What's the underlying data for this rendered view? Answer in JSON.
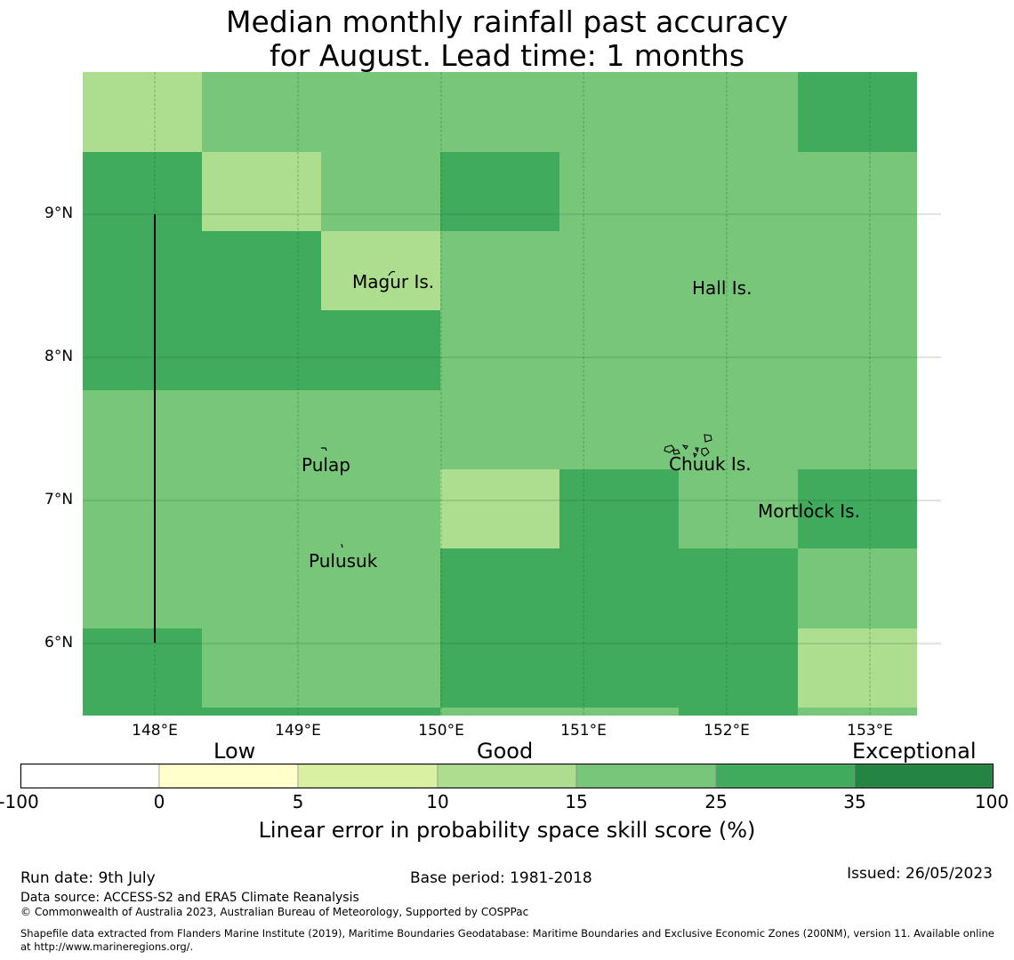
{
  "title": {
    "line1": "Median monthly rainfall past accuracy",
    "line2": "for August. Lead time: 1 months"
  },
  "map": {
    "lat_ticks": [
      "9°N",
      "8°N",
      "7°N",
      "6°N"
    ],
    "lon_ticks": [
      "148°E",
      "149°E",
      "150°E",
      "151°E",
      "152°E",
      "153°E"
    ],
    "islands": [
      "Magur Is.",
      "Hall Is.",
      "Pulap",
      "Chuuk Is.",
      "Mortlock Is.",
      "Pulusuk"
    ],
    "skill_grid": [
      [
        3,
        4,
        4,
        4,
        4,
        4,
        5
      ],
      [
        5,
        3,
        4,
        5,
        4,
        4,
        4
      ],
      [
        5,
        5,
        3,
        4,
        4,
        4,
        4
      ],
      [
        5,
        5,
        5,
        4,
        4,
        4,
        4
      ],
      [
        4,
        4,
        4,
        4,
        4,
        4,
        4
      ],
      [
        4,
        4,
        4,
        3,
        5,
        4,
        5
      ],
      [
        4,
        4,
        4,
        5,
        5,
        5,
        4
      ],
      [
        5,
        4,
        4,
        5,
        5,
        5,
        3
      ],
      [
        5,
        5,
        5,
        4,
        4,
        5,
        4
      ]
    ]
  },
  "colorbar": {
    "categories": [
      "Low",
      "Good",
      "Exceptional"
    ],
    "ticks": [
      "-100",
      "0",
      "5",
      "10",
      "15",
      "25",
      "35",
      "100"
    ],
    "colors": [
      "#ffffff",
      "#ffffcc",
      "#d9f0a3",
      "#addd8e",
      "#78c679",
      "#41ab5d",
      "#238443"
    ],
    "label": "Linear error in probability space skill score (%)"
  },
  "footer": {
    "run_date": "Run date: 9th July",
    "base_period": "Base period: 1981-2018",
    "issued": "Issued: 26/05/2023",
    "data_source": "Data source: ACCESS-S2 and ERA5 Climate Reanalysis",
    "copyright": "© Commonwealth of Australia 2023, Australian Bureau of Meteorology, Supported by COSPPac",
    "shapefile": "Shapefile data extracted from Flanders Marine Institute (2019), Maritime Boundaries Geodatabase: Maritime Boundaries and Exclusive Economic Zones (200NM), version 11. Available online at http://www.marineregions.org/."
  }
}
